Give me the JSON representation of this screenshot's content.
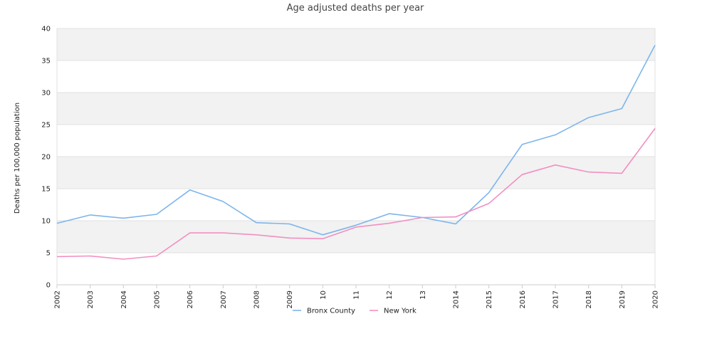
{
  "chart_data": {
    "type": "line",
    "title": "Age adjusted deaths per year",
    "xlabel": "",
    "ylabel": "Deaths per 100,000 population",
    "x": [
      "2002",
      "2003",
      "2004",
      "2005",
      "2006",
      "2007",
      "2008",
      "2009",
      "2010",
      "2011",
      "2012",
      "2013",
      "2014",
      "2015",
      "2016",
      "2017",
      "2018",
      "2019",
      "2020"
    ],
    "x_tick_labels": [
      "2002",
      "2003",
      "2004",
      "2005",
      "2006",
      "2007",
      "2008",
      "2009",
      "10",
      "11",
      "12",
      "13",
      "2014",
      "2015",
      "2016",
      "2017",
      "2018",
      "2019",
      "2020"
    ],
    "ylim": [
      0,
      40
    ],
    "y_ticks": [
      0,
      5,
      10,
      15,
      20,
      25,
      30,
      35,
      40
    ],
    "grid": true,
    "banded_background": true,
    "legend_position": "bottom-center",
    "series": [
      {
        "name": "Bronx County",
        "color": "#7cb5ec",
        "values": [
          9.6,
          10.9,
          10.4,
          11.0,
          14.8,
          13.0,
          9.7,
          9.5,
          7.8,
          9.3,
          11.1,
          10.5,
          9.5,
          14.4,
          21.9,
          23.4,
          26.1,
          27.5,
          37.4
        ]
      },
      {
        "name": "New York",
        "color": "#f28fc1",
        "values": [
          4.4,
          4.5,
          4.0,
          4.5,
          8.1,
          8.1,
          7.8,
          7.3,
          7.2,
          9.0,
          9.6,
          10.5,
          10.6,
          12.7,
          17.2,
          18.7,
          17.6,
          17.4,
          24.4
        ]
      }
    ]
  }
}
